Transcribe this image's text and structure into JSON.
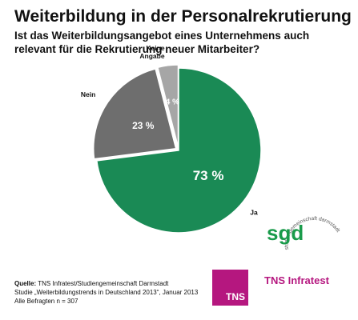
{
  "title": "Weiterbildung in der Personalrekrutierung",
  "question": "Ist das Weiterbildungsangebot eines Unternehmens auch relevant für die Rekrutierung neuer Mitarbeiter?",
  "chart_data": {
    "type": "pie",
    "slices": [
      {
        "label": "Ja",
        "value": 73,
        "display": "73 %",
        "color": "#1a8a55"
      },
      {
        "label": "Nein",
        "value": 23,
        "display": "23 %",
        "color": "#6e6e6e"
      },
      {
        "label": "Keine Angabe",
        "value": 4,
        "display": "4 %",
        "color": "#a6a6a6"
      }
    ]
  },
  "source": {
    "label": "Quelle:",
    "line1": "TNS Infratest/Studiengemeinschaft Darmstadt",
    "line2": "Studie „Weiterbildungstrends in Deutschland 2013“, Januar 2013",
    "line3": "Alle Befragten n = 307"
  },
  "logos": {
    "tns_box": "TNS",
    "tns_name": "TNS Infratest",
    "sgd_mark": "sgd",
    "sgd_ring_text": "studiengemeinschaft darmstadt"
  }
}
